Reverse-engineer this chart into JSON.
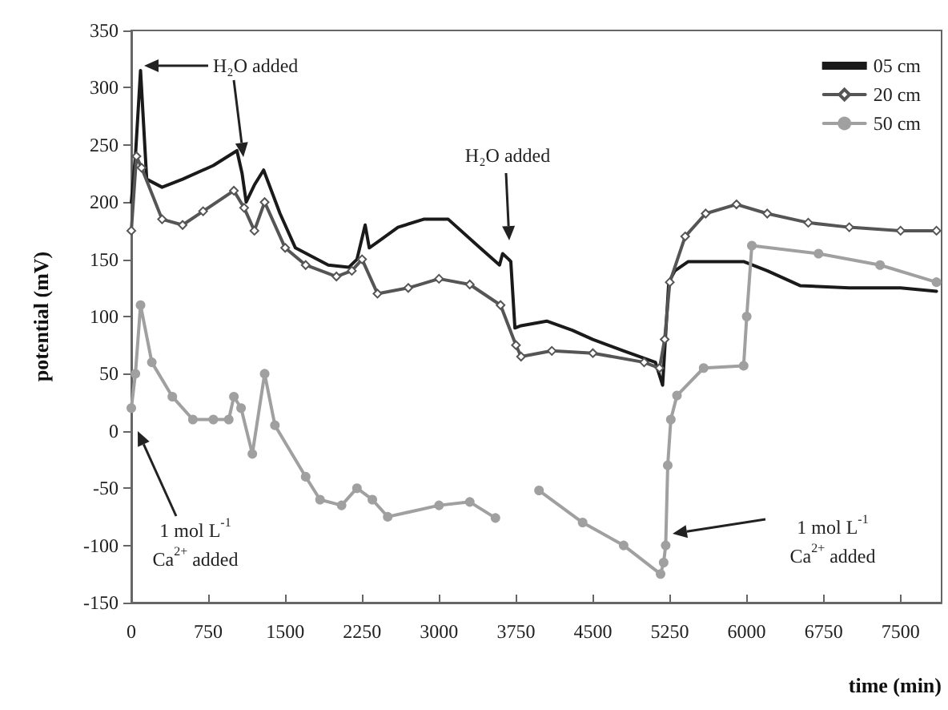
{
  "chart_data": {
    "type": "line",
    "xlabel": "time (min)",
    "ylabel": "potential (mV)",
    "xlim": [
      0,
      7900
    ],
    "xticks": [
      0,
      750,
      1500,
      2250,
      3000,
      3750,
      4500,
      5250,
      6000,
      6750,
      7500
    ],
    "ylim": [
      -150,
      350
    ],
    "yticks": [
      -150,
      -100,
      -50,
      0,
      50,
      100,
      150,
      200,
      250,
      300,
      350
    ],
    "grid": false,
    "legend": "top right",
    "series": [
      {
        "name": "05 cm",
        "color": "#1a1a1a",
        "marker": "none",
        "x": [
          0,
          40,
          90,
          150,
          300,
          500,
          800,
          1030,
          1080,
          1120,
          1200,
          1290,
          1450,
          1600,
          1920,
          2120,
          2200,
          2280,
          2320,
          2400,
          2600,
          2850,
          3090,
          3400,
          3590,
          3620,
          3680,
          3700,
          3740,
          3800,
          4050,
          4300,
          4500,
          4800,
          5110,
          5180,
          5240,
          5300,
          5430,
          5970,
          6200,
          6520,
          7000,
          7500,
          7850
        ],
        "values": [
          200,
          240,
          315,
          220,
          213,
          220,
          232,
          245,
          225,
          200,
          215,
          228,
          190,
          160,
          145,
          143,
          150,
          180,
          160,
          165,
          178,
          185,
          185,
          160,
          145,
          155,
          150,
          148,
          90,
          92,
          96,
          88,
          80,
          70,
          60,
          40,
          130,
          140,
          148,
          148,
          140,
          127,
          125,
          125,
          122
        ]
      },
      {
        "name": "20 cm",
        "color": "#555555",
        "marker": "diamond",
        "x": [
          0,
          50,
          100,
          300,
          500,
          700,
          1000,
          1100,
          1200,
          1300,
          1500,
          1700,
          2000,
          2150,
          2250,
          2400,
          2700,
          3000,
          3300,
          3600,
          3750,
          3800,
          4100,
          4500,
          5000,
          5150,
          5200,
          5250,
          5400,
          5600,
          5900,
          6200,
          6600,
          7000,
          7500,
          7850
        ],
        "values": [
          175,
          240,
          230,
          185,
          180,
          192,
          210,
          195,
          175,
          200,
          160,
          145,
          135,
          140,
          150,
          120,
          125,
          133,
          128,
          110,
          75,
          65,
          70,
          68,
          60,
          55,
          80,
          130,
          170,
          190,
          198,
          190,
          182,
          178,
          175,
          175
        ]
      },
      {
        "name": "50 cm",
        "color": "#a0a0a0",
        "marker": "circle",
        "x": [
          0,
          40,
          90,
          200,
          400,
          600,
          800,
          950,
          1000,
          1070,
          1180,
          1300,
          1400,
          1700,
          1840,
          2050,
          2200,
          2350,
          2500,
          3000,
          3300,
          3550,
          3750,
          3975,
          4400,
          4800,
          5160,
          5190,
          5210,
          5230,
          5260,
          5320,
          5580,
          5970,
          6000,
          6050,
          6700,
          7300,
          7850
        ],
        "values": [
          20,
          50,
          110,
          60,
          30,
          10,
          10,
          10,
          30,
          20,
          -20,
          50,
          5,
          -40,
          -60,
          -65,
          -50,
          -60,
          -75,
          -65,
          -62,
          -76,
          null,
          -52,
          -80,
          -100,
          -125,
          -115,
          -100,
          -30,
          10,
          31,
          55,
          57,
          100,
          162,
          155,
          145,
          130
        ]
      }
    ],
    "annotations": [
      "H₂O added",
      "H₂O added",
      "1 mol L$^{-1}$\nCa$^{2+}$ added",
      "1 mol L$^{-1}$\nCa$^{2+}$ added"
    ]
  }
}
